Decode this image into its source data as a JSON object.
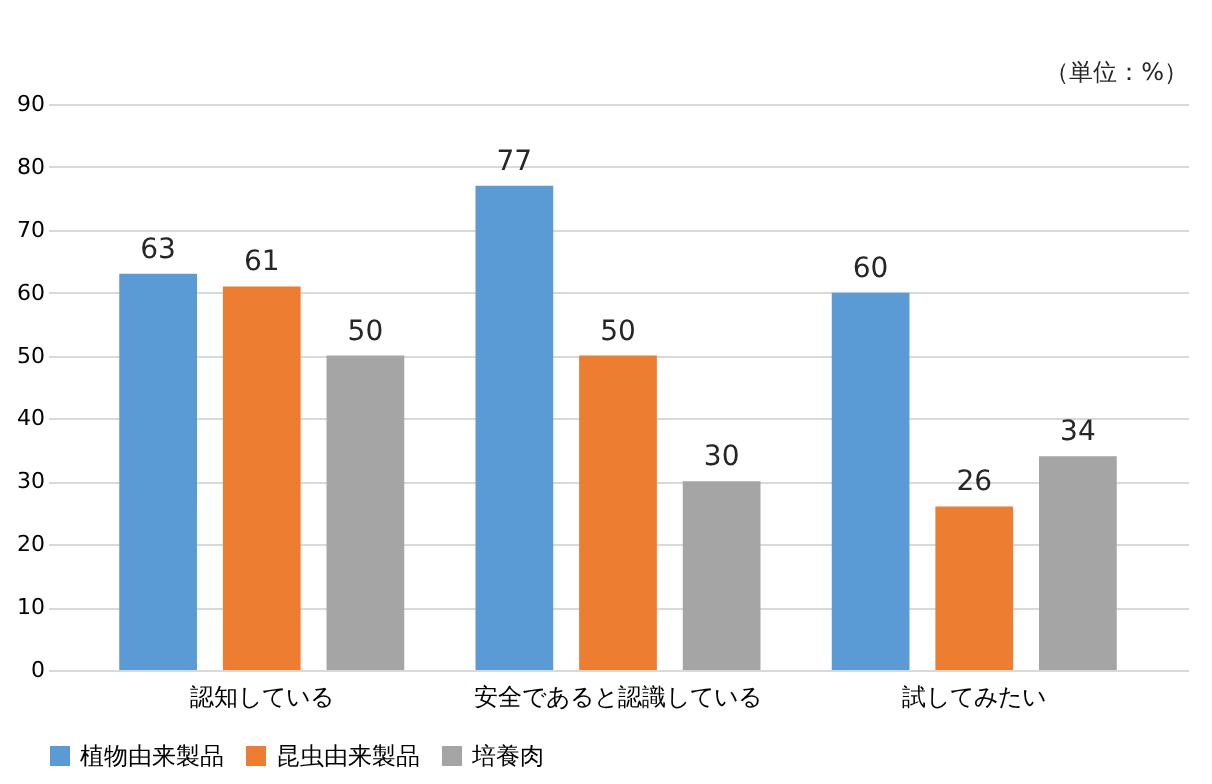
{
  "chart_data": {
    "type": "bar",
    "categories": [
      "認知している",
      "安全であると認識している",
      "試してみたい"
    ],
    "series": [
      {
        "name": "植物由来製品",
        "color": "#5b9bd5",
        "values": [
          63,
          77,
          60
        ]
      },
      {
        "name": "昆虫由来製品",
        "color": "#ed7d31",
        "values": [
          61,
          50,
          26
        ]
      },
      {
        "name": "培養肉",
        "color": "#a5a5a5",
        "values": [
          50,
          30,
          34
        ]
      }
    ],
    "ylim": [
      0,
      90
    ],
    "yticks": [
      0,
      10,
      20,
      30,
      40,
      50,
      60,
      70,
      80,
      90
    ],
    "grid": "y",
    "legend": "bottom",
    "data_labels": true,
    "annotations": [
      "（単位：%）"
    ]
  }
}
